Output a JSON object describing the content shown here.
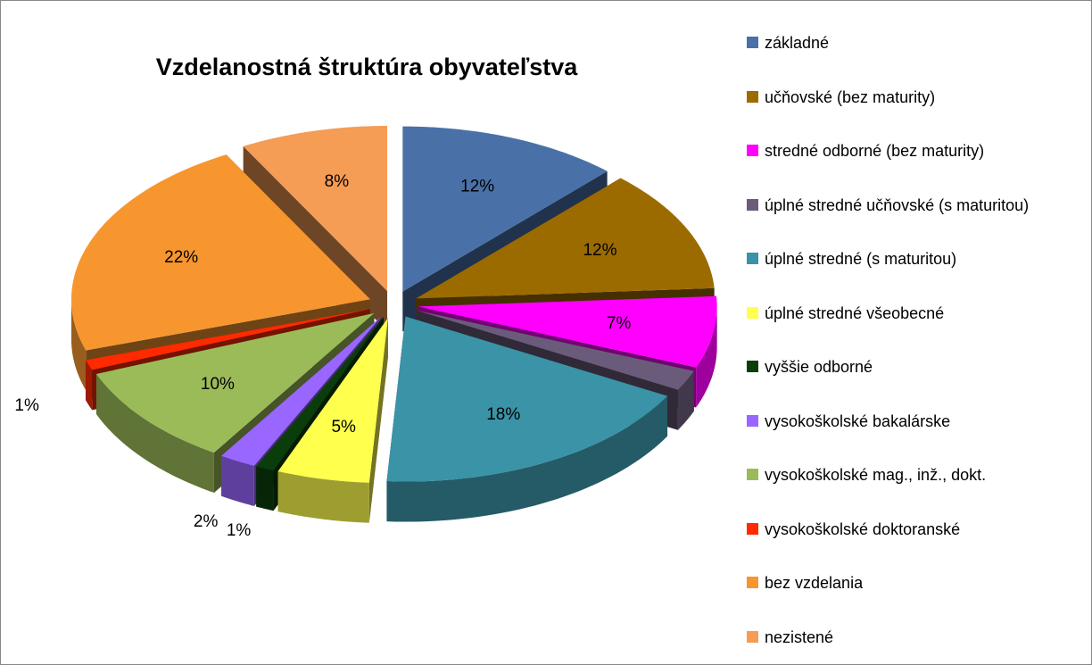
{
  "chart_data": {
    "type": "pie",
    "title": "Vzdelanostná štruktúra obyvateľstva",
    "categories": [
      "základné",
      "učňovské (bez maturity)",
      "stredné odborné (bez maturity)",
      "úplné stredné učňovské (s maturitou)",
      "úplné stredné (s maturitou)",
      "úplné stredné všeobecné",
      "vyššie odborné",
      "vysokoškolské bakalárske",
      "vysokoškolské mag., inž., dokt.",
      "vysokoškolské doktoranské",
      "bez vzdelania",
      "nezistené"
    ],
    "values": [
      12,
      12,
      7,
      2,
      18,
      5,
      1,
      2,
      10,
      1,
      22,
      8
    ],
    "value_labels": [
      "12%",
      "12%",
      "7%",
      "2%",
      "18%",
      "5%",
      "1%",
      "2%",
      "10%",
      "1%",
      "22%",
      "8%"
    ],
    "colors": [
      "#4a70a8",
      "#9c6b00",
      "#ff00ff",
      "#6b5b7b",
      "#3a93a6",
      "#ffff4d",
      "#0b3d0b",
      "#9966ff",
      "#9bbb59",
      "#ff2a00",
      "#f7962e",
      "#f59c55"
    ],
    "legend": "right"
  }
}
